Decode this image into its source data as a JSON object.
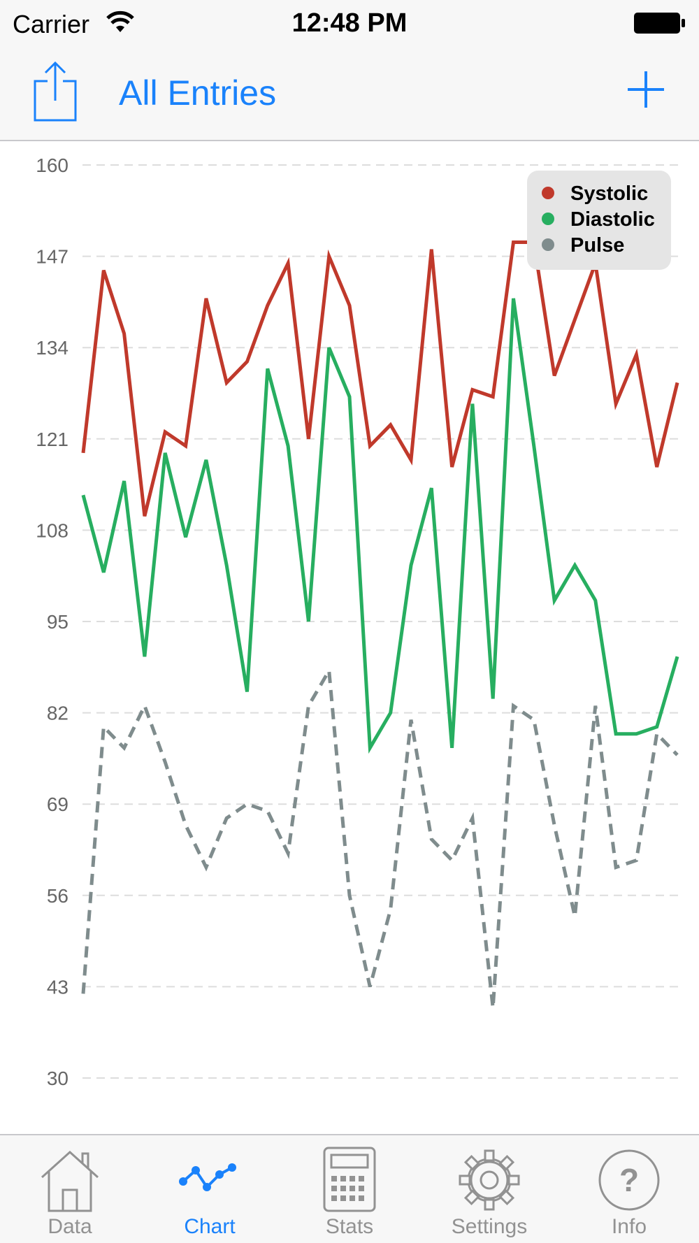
{
  "status_bar": {
    "carrier": "Carrier",
    "time": "12:48 PM"
  },
  "nav_bar": {
    "title": "All Entries"
  },
  "tabs": [
    {
      "label": "Data",
      "icon": "house-icon",
      "active": false
    },
    {
      "label": "Chart",
      "icon": "chart-icon",
      "active": true
    },
    {
      "label": "Stats",
      "icon": "calculator-icon",
      "active": false
    },
    {
      "label": "Settings",
      "icon": "gear-icon",
      "active": false
    },
    {
      "label": "Info",
      "icon": "question-icon",
      "active": false
    }
  ],
  "colors": {
    "accent": "#1a82fb",
    "systolic": "#c0392b",
    "diastolic": "#27ae60",
    "pulse": "#7f8c8d"
  },
  "chart_data": {
    "type": "line",
    "yticks": [
      30,
      43,
      56,
      69,
      82,
      95,
      108,
      121,
      134,
      147,
      160
    ],
    "ylim": [
      30,
      160
    ],
    "grid": true,
    "legend_position": "top-right",
    "series": [
      {
        "name": "Systolic",
        "color": "#c0392b",
        "dashed": false,
        "values": [
          119,
          145,
          136,
          110,
          122,
          120,
          141,
          129,
          132,
          140,
          146,
          121,
          147,
          140,
          120,
          123,
          118,
          148,
          117,
          128,
          127,
          149,
          149,
          130,
          138,
          146,
          126,
          133,
          117,
          129
        ]
      },
      {
        "name": "Diastolic",
        "color": "#27ae60",
        "dashed": false,
        "values": [
          113,
          102,
          115,
          90,
          119,
          107,
          118,
          103,
          85,
          131,
          120,
          95,
          134,
          127,
          77,
          82,
          103,
          114,
          77,
          126,
          84,
          141,
          120,
          98,
          103,
          98,
          79,
          79,
          80,
          90
        ]
      },
      {
        "name": "Pulse",
        "color": "#7f8c8d",
        "dashed": true,
        "values": [
          42,
          80,
          77,
          83,
          75,
          66,
          60,
          67,
          69,
          68,
          62,
          83,
          88,
          56,
          43,
          54,
          81,
          64,
          61,
          67,
          40,
          83,
          81,
          66,
          53,
          83,
          60,
          61,
          79,
          76
        ]
      }
    ]
  }
}
